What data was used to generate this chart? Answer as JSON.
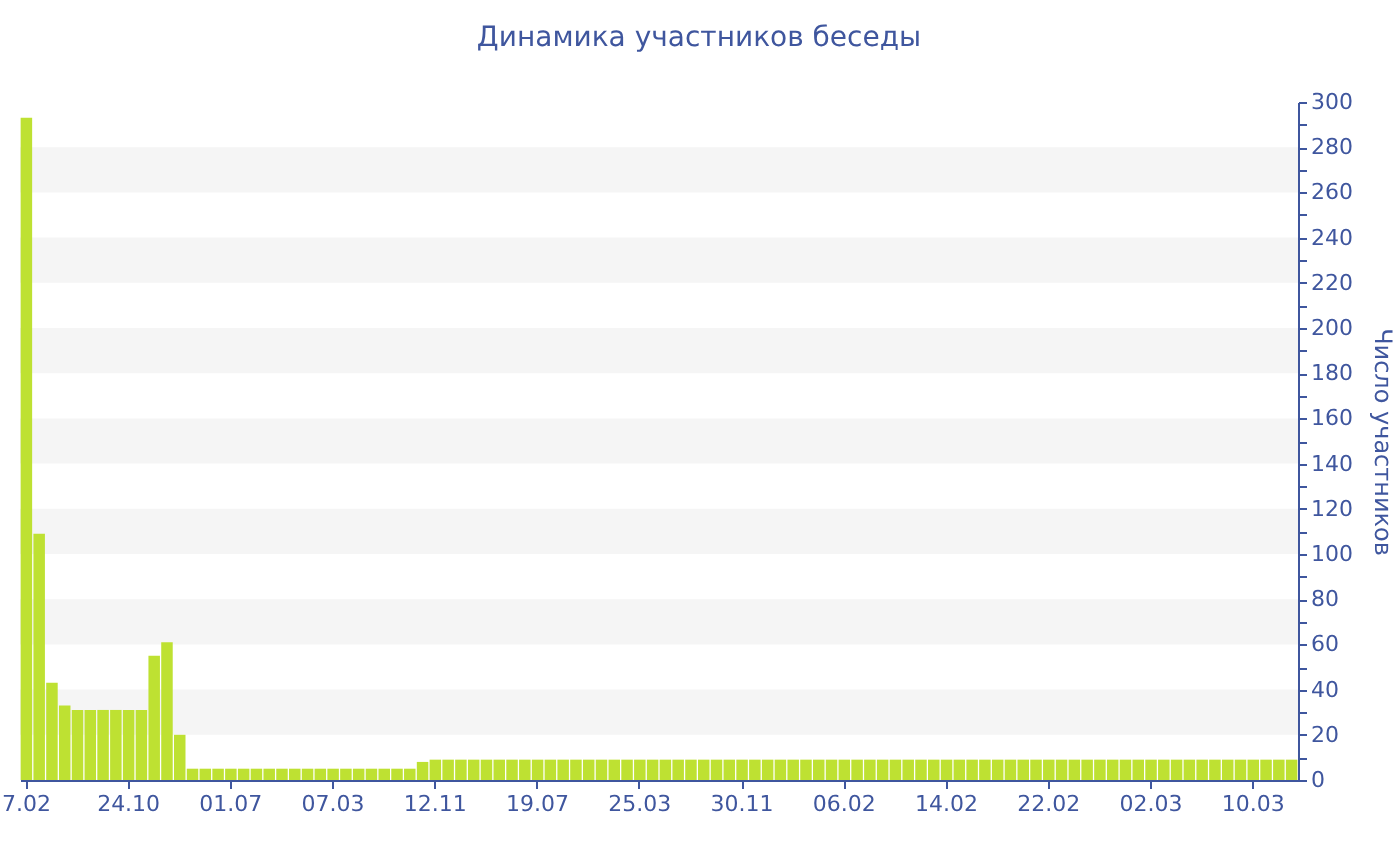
{
  "chart_data": {
    "type": "bar",
    "title": "Динамика участников беседы",
    "ylabel": "Число участников",
    "categories": [
      "7.02",
      null,
      null,
      null,
      null,
      null,
      null,
      null,
      "24.10",
      null,
      null,
      null,
      null,
      null,
      null,
      null,
      "01.07",
      null,
      null,
      null,
      null,
      null,
      null,
      null,
      "07.03",
      null,
      null,
      null,
      null,
      null,
      null,
      null,
      "12.11",
      null,
      null,
      null,
      null,
      null,
      null,
      null,
      "19.07",
      null,
      null,
      null,
      null,
      null,
      null,
      null,
      "25.03",
      null,
      null,
      null,
      null,
      null,
      null,
      null,
      "30.11",
      null,
      null,
      null,
      null,
      null,
      null,
      null,
      "06.02",
      null,
      null,
      null,
      null,
      null,
      null,
      null,
      "14.02",
      null,
      null,
      null,
      null,
      null,
      null,
      null,
      "22.02",
      null,
      null,
      null,
      null,
      null,
      null,
      null,
      "02.03",
      null,
      null,
      null,
      null,
      null,
      null,
      null,
      "10.03",
      null,
      null,
      null
    ],
    "values": [
      293,
      109,
      43,
      33,
      31,
      31,
      31,
      31,
      31,
      31,
      55,
      61,
      20,
      5,
      5,
      5,
      5,
      5,
      5,
      5,
      5,
      5,
      5,
      5,
      5,
      5,
      5,
      5,
      5,
      5,
      5,
      8,
      9,
      9,
      9,
      9,
      9,
      9,
      9,
      9,
      9,
      9,
      9,
      9,
      9,
      9,
      9,
      9,
      9,
      9,
      9,
      9,
      9,
      9,
      9,
      9,
      9,
      9,
      9,
      9,
      9,
      9,
      9,
      9,
      9,
      9,
      9,
      9,
      9,
      9,
      9,
      9,
      9,
      9,
      9,
      9,
      9,
      9,
      9,
      9,
      9,
      9,
      9,
      9,
      9,
      9,
      9,
      9,
      9,
      9,
      9,
      9,
      9,
      9,
      9,
      9,
      9,
      9,
      9,
      9
    ],
    "color": "#bee132",
    "ylim": [
      0,
      300
    ],
    "yticks": [
      0,
      {
        "value": 10,
        "label": null
      },
      20,
      {
        "value": 30,
        "label": null
      },
      40,
      {
        "value": 50,
        "label": null
      },
      60,
      {
        "value": 70,
        "label": null
      },
      80,
      {
        "value": 90,
        "label": null
      },
      100,
      {
        "value": 110,
        "label": null
      },
      120,
      {
        "value": 130,
        "label": null
      },
      140,
      {
        "value": 150,
        "label": null
      },
      160,
      {
        "value": 170,
        "label": null
      },
      180,
      {
        "value": 190,
        "label": null
      },
      200,
      {
        "value": 210,
        "label": null
      },
      220,
      {
        "value": 230,
        "label": null
      },
      240,
      {
        "value": 250,
        "label": null
      },
      260,
      {
        "value": 270,
        "label": null
      },
      280,
      {
        "value": 290,
        "label": null
      },
      300
    ],
    "bands": [
      {
        "axis": "y",
        "from": 20,
        "to": 40,
        "color": "#f5f5f5"
      },
      {
        "axis": "y",
        "from": 60,
        "to": 80,
        "color": "#f5f5f5"
      },
      {
        "axis": "y",
        "from": 100,
        "to": 120,
        "color": "#f5f5f5"
      },
      {
        "axis": "y",
        "from": 140,
        "to": 160,
        "color": "#f5f5f5"
      },
      {
        "axis": "y",
        "from": 180,
        "to": 200,
        "color": "#f5f5f5"
      },
      {
        "axis": "y",
        "from": 220,
        "to": 240,
        "color": "#f5f5f5"
      },
      {
        "axis": "y",
        "from": 260,
        "to": 280,
        "color": "#f5f5f5"
      }
    ]
  }
}
